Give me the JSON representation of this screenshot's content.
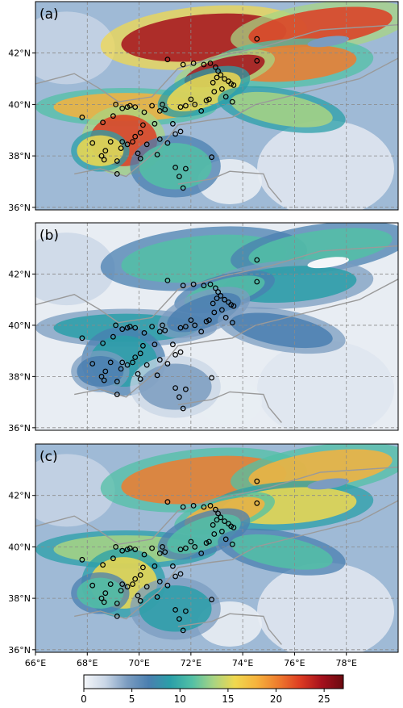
{
  "panels": [
    {
      "label": "(a)",
      "intensity": 1.0
    },
    {
      "label": "(b)",
      "intensity": 0.45
    },
    {
      "label": "(c)",
      "intensity": 0.75
    }
  ],
  "lat_ticks": [
    "36°N",
    "38°N",
    "40°N",
    "42°N"
  ],
  "lon_ticks": [
    "66°E",
    "68°E",
    "70°E",
    "72°E",
    "74°E",
    "76°E",
    "78°E"
  ],
  "colorbar": {
    "ticks": [
      "0",
      "5",
      "10",
      "15",
      "20",
      "25"
    ],
    "tick_values": [
      0,
      5,
      10,
      15,
      20,
      25
    ],
    "min": 0,
    "max": 27,
    "colors": [
      "#f4f6f9",
      "#c9d6e6",
      "#7b9cc0",
      "#4a7fb0",
      "#2a9fa8",
      "#52c0a6",
      "#a8d483",
      "#f0d84f",
      "#f6b23c",
      "#ee7b2e",
      "#dd3c22",
      "#a5101c",
      "#6a0a10"
    ]
  },
  "stations": [
    [
      71.1,
      41.75
    ],
    [
      71.7,
      41.55
    ],
    [
      72.1,
      41.6
    ],
    [
      72.5,
      41.55
    ],
    [
      72.75,
      41.6
    ],
    [
      72.95,
      41.45
    ],
    [
      73.05,
      41.3
    ],
    [
      73.15,
      41.15
    ],
    [
      73.0,
      41.05
    ],
    [
      73.3,
      41.0
    ],
    [
      73.45,
      40.9
    ],
    [
      73.55,
      40.8
    ],
    [
      73.65,
      40.75
    ],
    [
      72.85,
      40.85
    ],
    [
      73.2,
      40.6
    ],
    [
      72.9,
      40.5
    ],
    [
      73.35,
      40.3
    ],
    [
      73.6,
      40.1
    ],
    [
      72.6,
      40.15
    ],
    [
      72.15,
      40.0
    ],
    [
      71.8,
      39.95
    ],
    [
      71.6,
      39.9
    ],
    [
      72.0,
      40.2
    ],
    [
      72.7,
      40.2
    ],
    [
      72.4,
      39.75
    ],
    [
      74.55,
      42.55
    ],
    [
      74.55,
      41.7
    ],
    [
      67.8,
      39.5
    ],
    [
      68.6,
      39.3
    ],
    [
      69.1,
      40.0
    ],
    [
      69.35,
      39.85
    ],
    [
      69.55,
      39.9
    ],
    [
      69.65,
      39.95
    ],
    [
      69.85,
      39.9
    ],
    [
      70.5,
      39.95
    ],
    [
      70.9,
      40.0
    ],
    [
      71.0,
      39.8
    ],
    [
      70.8,
      39.75
    ],
    [
      70.2,
      39.7
    ],
    [
      69.0,
      39.55
    ],
    [
      70.6,
      39.25
    ],
    [
      71.3,
      39.25
    ],
    [
      71.6,
      38.95
    ],
    [
      71.4,
      38.85
    ],
    [
      70.05,
      38.9
    ],
    [
      69.85,
      38.75
    ],
    [
      69.75,
      38.55
    ],
    [
      69.35,
      38.55
    ],
    [
      69.55,
      38.45
    ],
    [
      69.3,
      38.3
    ],
    [
      68.9,
      38.55
    ],
    [
      68.7,
      38.2
    ],
    [
      68.55,
      38.0
    ],
    [
      68.65,
      37.85
    ],
    [
      69.15,
      37.8
    ],
    [
      69.15,
      37.3
    ],
    [
      69.95,
      38.1
    ],
    [
      70.05,
      37.9
    ],
    [
      68.2,
      38.5
    ],
    [
      70.3,
      38.45
    ],
    [
      70.7,
      38.05
    ],
    [
      71.1,
      38.5
    ],
    [
      71.4,
      37.55
    ],
    [
      71.55,
      37.2
    ],
    [
      71.8,
      37.5
    ],
    [
      71.7,
      36.75
    ],
    [
      72.8,
      37.95
    ],
    [
      70.8,
      38.65
    ],
    [
      70.15,
      39.2
    ]
  ]
}
